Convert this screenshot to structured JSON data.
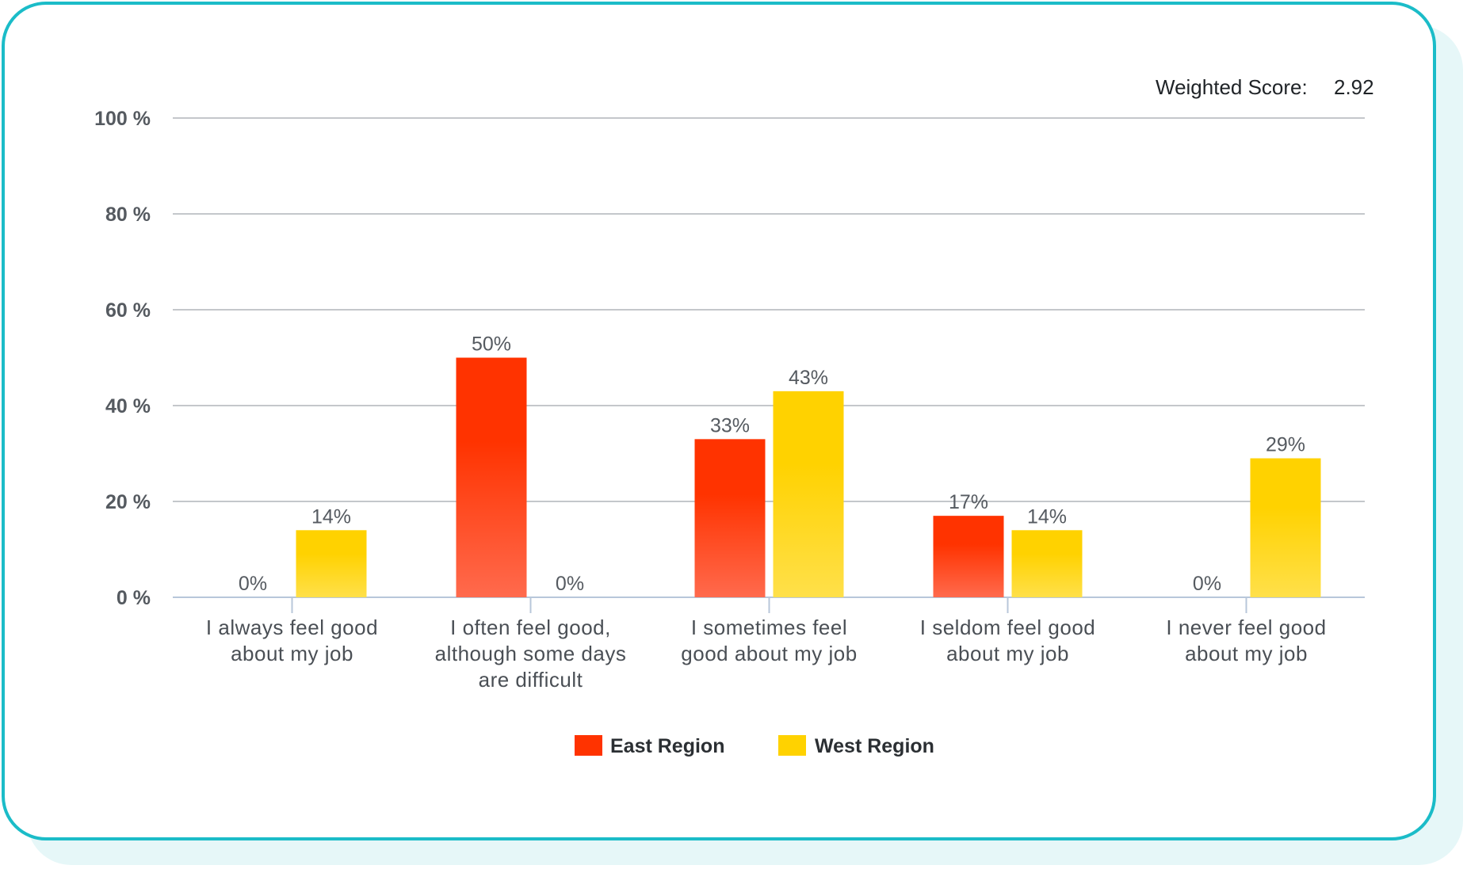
{
  "colors": {
    "east": "#ff3300",
    "east_light": "#ff6a4d",
    "west": "#ffd200",
    "west_light": "#ffe04a",
    "grid": "#c4c7cb",
    "axis": "#b8c7da",
    "border": "#1bbcc8"
  },
  "weighted_score": {
    "label": "Weighted Score:",
    "value": "2.92"
  },
  "chart_data": {
    "type": "bar",
    "title": "",
    "xlabel": "",
    "ylabel": "",
    "ylim": [
      0,
      100
    ],
    "yticks": [
      0,
      20,
      40,
      60,
      80,
      100
    ],
    "ytick_labels": [
      "0 %",
      "20 %",
      "40 %",
      "60 %",
      "80 %",
      "100 %"
    ],
    "grid": true,
    "legend_position": "bottom-center",
    "categories": [
      [
        "I always feel good",
        "about my job"
      ],
      [
        "I often feel good,",
        "although some days",
        "are difficult"
      ],
      [
        "I sometimes feel",
        "good about my job"
      ],
      [
        "I seldom feel good",
        "about my job"
      ],
      [
        "I never feel good",
        "about my job"
      ]
    ],
    "series": [
      {
        "name": "East Region",
        "values": [
          0,
          50,
          33,
          17,
          0
        ],
        "labels": [
          "0%",
          "50%",
          "33%",
          "17%",
          "0%"
        ]
      },
      {
        "name": "West Region",
        "values": [
          14,
          0,
          43,
          14,
          29
        ],
        "labels": [
          "14%",
          "0%",
          "43%",
          "14%",
          "29%"
        ]
      }
    ]
  }
}
